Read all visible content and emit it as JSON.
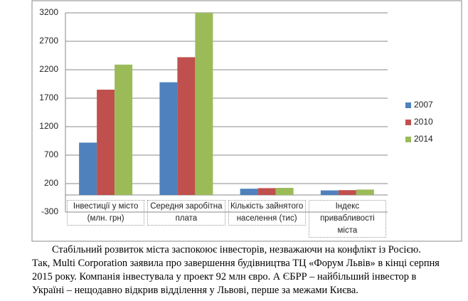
{
  "chart_data": {
    "type": "bar",
    "categories": [
      "Інвестиції у місто (млн. грн)",
      "Середня заробітна плата",
      "Кількість зайнятого населення (тис)",
      "Індекс привабливості міста"
    ],
    "series": [
      {
        "name": "2007",
        "color": "#4f81bd",
        "values": [
          920,
          1980,
          110,
          80
        ]
      },
      {
        "name": "2010",
        "color": "#c0504d",
        "values": [
          1850,
          2420,
          120,
          85
        ]
      },
      {
        "name": "2014",
        "color": "#9bbb59",
        "values": [
          2290,
          3200,
          125,
          95
        ]
      }
    ],
    "ylim": [
      -300,
      3200
    ],
    "yticks": [
      -300,
      200,
      700,
      1200,
      1700,
      2200,
      2700,
      3200
    ],
    "grid": true,
    "legend": "right"
  },
  "caption": "Стабільний розвиток міста заспокоює інвесторів, незважаючи на конфлікт із Росією. Так, Multi Corporation заявила про завершення будівництва ТЦ «Форум Львів» в кінці серпня 2015 року. Компанія інвестувала у проект 92 млн євро. А ЄБРР – найбільший інвестор в Україні – нещодавно відкрив відділення у Львові, перше за межами Києва."
}
